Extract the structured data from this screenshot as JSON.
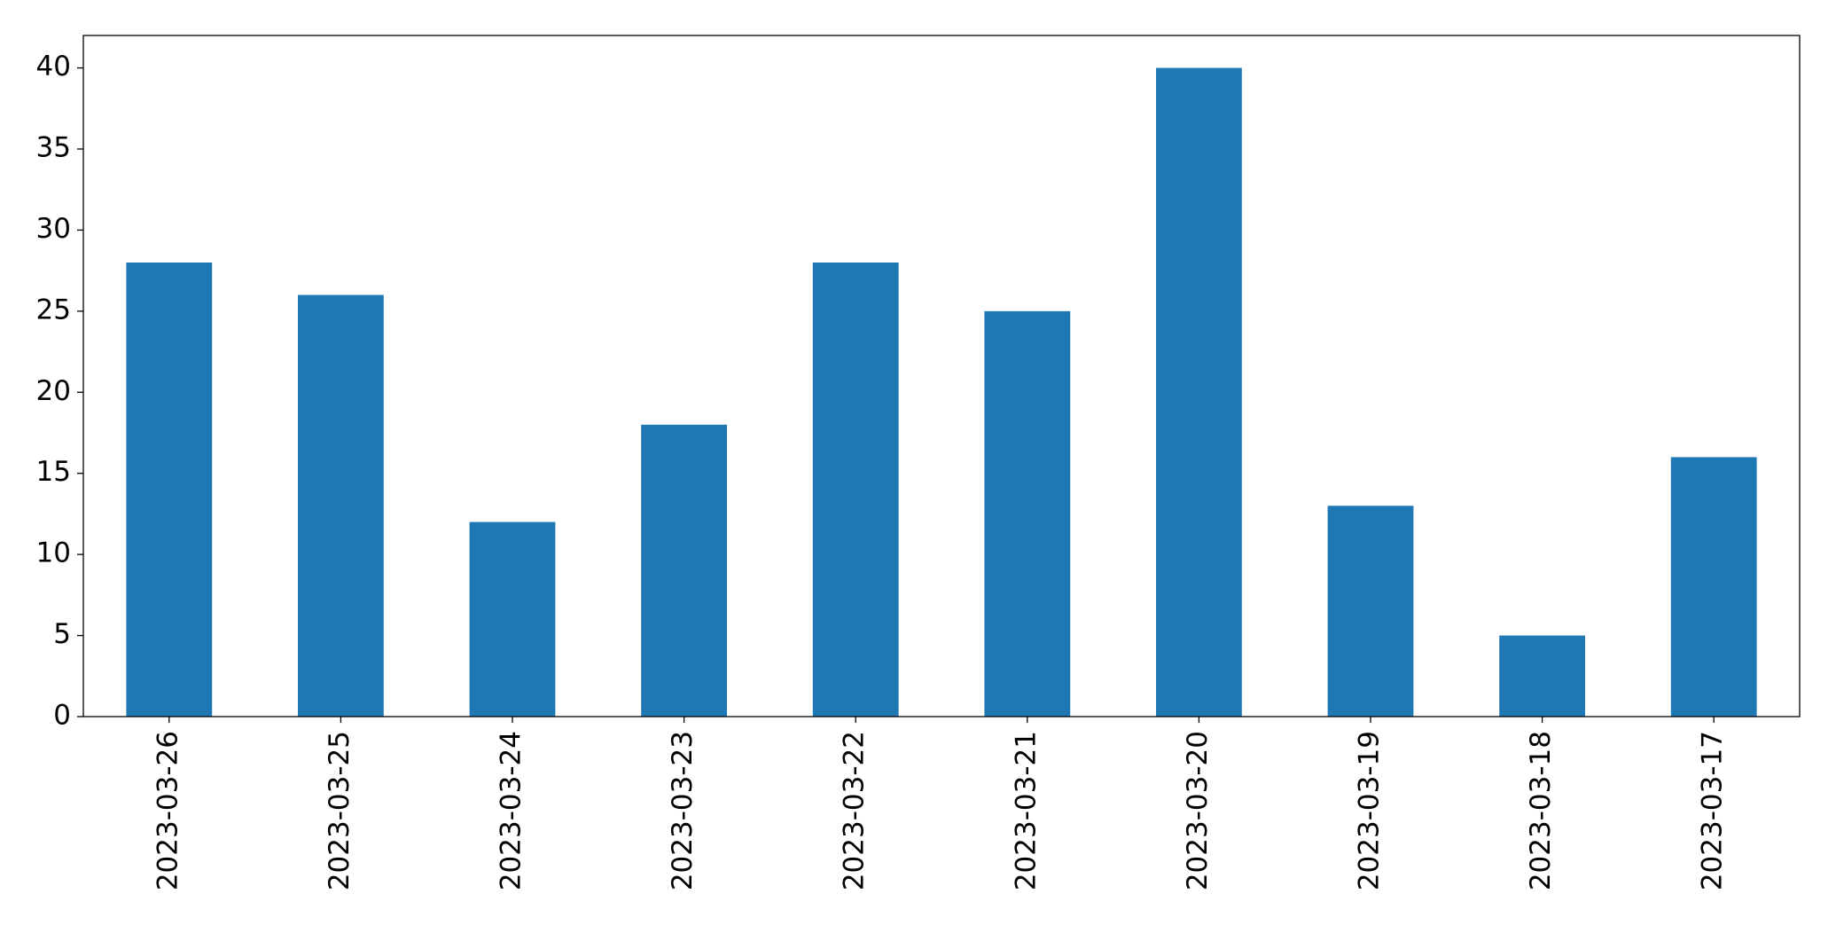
{
  "chart_data": {
    "type": "bar",
    "categories": [
      "2023-03-26",
      "2023-03-25",
      "2023-03-24",
      "2023-03-23",
      "2023-03-22",
      "2023-03-21",
      "2023-03-20",
      "2023-03-19",
      "2023-03-18",
      "2023-03-17"
    ],
    "values": [
      28,
      26,
      12,
      18,
      28,
      25,
      40,
      13,
      5,
      16
    ],
    "color": "#1f77b4",
    "ylim": [
      0,
      42
    ],
    "yticks": [
      0,
      5,
      10,
      15,
      20,
      25,
      30,
      35,
      40
    ],
    "grid": false
  }
}
